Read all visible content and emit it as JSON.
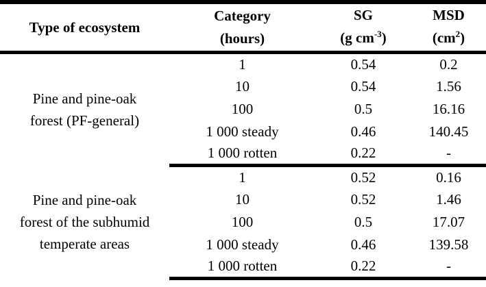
{
  "table": {
    "headers": {
      "ecosystem": "Type of ecosystem",
      "category_line1": "Category",
      "category_line2": "(hours)",
      "sg_line1": "SG",
      "sg_unit_pre": "(g cm",
      "sg_unit_sup": "-3",
      "sg_unit_post": ")",
      "msd_line1": "MSD",
      "msd_unit_pre": "(cm",
      "msd_unit_sup": "2",
      "msd_unit_post": ")"
    },
    "sections": [
      {
        "ecosystem_lines": [
          "Pine and pine-oak",
          "forest (PF-general)"
        ],
        "rows": [
          {
            "category": "1",
            "sg": "0.54",
            "msd": "0.2"
          },
          {
            "category": "10",
            "sg": "0.54",
            "msd": "1.56"
          },
          {
            "category": "100",
            "sg": "0.5",
            "msd": "16.16"
          },
          {
            "category": "1 000 steady",
            "sg": "0.46",
            "msd": "140.45"
          },
          {
            "category": "1 000 rotten",
            "sg": "0.22",
            "msd": "-"
          }
        ]
      },
      {
        "ecosystem_lines": [
          "Pine and pine-oak",
          "forest of the subhumid",
          "temperate areas"
        ],
        "rows": [
          {
            "category": "1",
            "sg": "0.52",
            "msd": "0.16"
          },
          {
            "category": "10",
            "sg": "0.52",
            "msd": "1.46"
          },
          {
            "category": "100",
            "sg": "0.5",
            "msd": "17.07"
          },
          {
            "category": "1 000 steady",
            "sg": "0.46",
            "msd": "139.58"
          },
          {
            "category": "1 000 rotten",
            "sg": "0.22",
            "msd": "-"
          }
        ]
      }
    ]
  },
  "colors": {
    "border": "#000000",
    "text": "#000000",
    "background": "#ffffff"
  }
}
